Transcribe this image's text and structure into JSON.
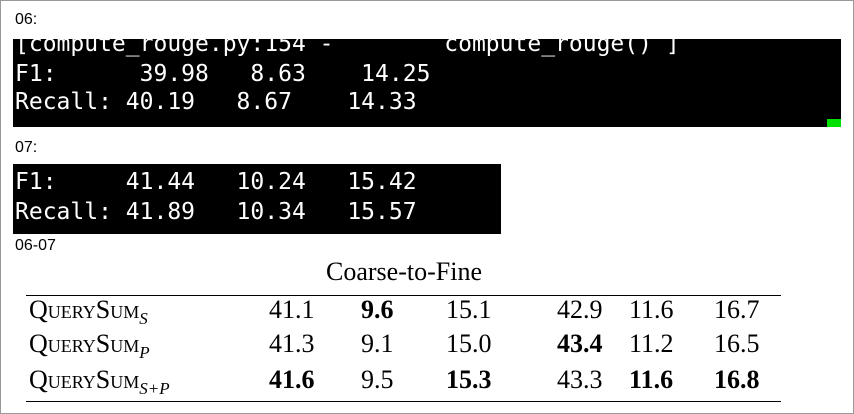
{
  "sections": [
    {
      "label": "06:",
      "lines": [
        "[compute_rouge.py:154 -        compute_rouge() ]",
        "F1:      39.98   8.63    14.25",
        "Recall: 40.19   8.67    14.33"
      ]
    },
    {
      "label": "07:",
      "lines": [
        "F1:     41.44   10.24   15.42",
        "Recall: 41.89   10.34   15.57"
      ]
    },
    {
      "label": "06-07"
    }
  ],
  "table": {
    "caption": "Coarse-to-Fine",
    "rows": [
      {
        "name": "QuerySum",
        "sub": "S",
        "cells": [
          "41.1",
          "9.6",
          "15.1",
          "42.9",
          "11.6",
          "16.7"
        ],
        "bold": [
          false,
          true,
          false,
          false,
          false,
          false
        ]
      },
      {
        "name": "QuerySum",
        "sub": "P",
        "cells": [
          "41.3",
          "9.1",
          "15.0",
          "43.4",
          "11.2",
          "16.5"
        ],
        "bold": [
          false,
          false,
          false,
          true,
          false,
          false
        ]
      },
      {
        "name": "QuerySum",
        "sub": "S+P",
        "cells": [
          "41.6",
          "9.5",
          "15.3",
          "43.3",
          "11.6",
          "16.8"
        ],
        "bold": [
          true,
          false,
          true,
          false,
          true,
          true
        ]
      }
    ]
  }
}
